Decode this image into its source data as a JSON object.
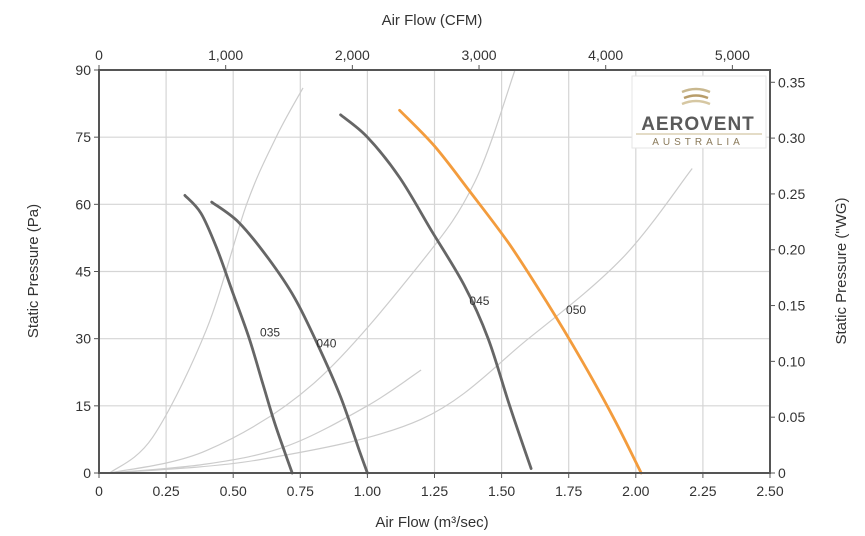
{
  "chart_data": {
    "type": "line",
    "title": "",
    "xlabel": "Air Flow (m³/sec)",
    "ylabel": "Static Pressure (Pa)",
    "x2label": "Air Flow (CFM)",
    "y2label": "Static Pressure (\"WG)",
    "xlim": [
      0,
      2.5
    ],
    "ylim": [
      0,
      90
    ],
    "x2lim": [
      0,
      5297
    ],
    "y2lim": [
      0,
      0.361
    ],
    "xticks": [
      "0",
      "0.25",
      "0.50",
      "0.75",
      "1.00",
      "1.25",
      "1.50",
      "1.75",
      "2.00",
      "2.25",
      "2.50"
    ],
    "yticks": [
      "0",
      "15",
      "30",
      "45",
      "60",
      "75",
      "90"
    ],
    "x2ticks": [
      "0",
      "1,000",
      "2,000",
      "3,000",
      "4,000",
      "5,000"
    ],
    "y2ticks": [
      "0",
      "0.05",
      "0.10",
      "0.15",
      "0.20",
      "0.25",
      "0.30",
      "0.35"
    ],
    "grid": true,
    "logo": {
      "name": "AEROVENT",
      "sub": "AUSTRALIA"
    },
    "series": [
      {
        "name": "035",
        "color": "#666666",
        "label_at": [
          0.6,
          30.5
        ],
        "x": [
          0.32,
          0.38,
          0.44,
          0.5,
          0.56,
          0.61,
          0.65,
          0.69,
          0.72
        ],
        "y": [
          62,
          58,
          50,
          40,
          30,
          20,
          12,
          5,
          0
        ]
      },
      {
        "name": "040",
        "color": "#666666",
        "label_at": [
          0.81,
          28
        ],
        "x": [
          0.42,
          0.52,
          0.63,
          0.73,
          0.82,
          0.9,
          0.97,
          1.0
        ],
        "y": [
          60.5,
          56,
          48,
          39,
          28,
          17,
          5,
          0
        ]
      },
      {
        "name": "045",
        "color": "#666666",
        "label_at": [
          1.38,
          37.5
        ],
        "x": [
          0.9,
          1.0,
          1.12,
          1.24,
          1.36,
          1.45,
          1.53,
          1.61
        ],
        "y": [
          80,
          75,
          66,
          54,
          42,
          30,
          15,
          1
        ]
      },
      {
        "name": "050",
        "color": "#f39c3d",
        "label_at": [
          1.74,
          35.5
        ],
        "x": [
          1.12,
          1.25,
          1.38,
          1.53,
          1.67,
          1.8,
          1.92,
          2.02
        ],
        "y": [
          81,
          73,
          63,
          51,
          38,
          25,
          12,
          0
        ]
      }
    ],
    "system_curves": [
      {
        "x": [
          0.04,
          0.2,
          0.4,
          0.55,
          0.66,
          0.76
        ],
        "y": [
          0,
          8,
          32,
          60,
          75,
          86
        ]
      },
      {
        "x": [
          0.04,
          0.4,
          0.8,
          1.2,
          1.4,
          1.55
        ],
        "y": [
          0,
          5,
          20,
          47,
          65,
          90
        ]
      },
      {
        "x": [
          0.04,
          0.6,
          1.2,
          1.6,
          1.95,
          2.21
        ],
        "y": [
          0,
          3,
          12,
          30,
          48,
          68
        ]
      },
      {
        "x": [
          0.04,
          0.4,
          0.7,
          1.0,
          1.2
        ],
        "y": [
          0,
          2,
          6,
          15,
          23
        ]
      }
    ]
  }
}
